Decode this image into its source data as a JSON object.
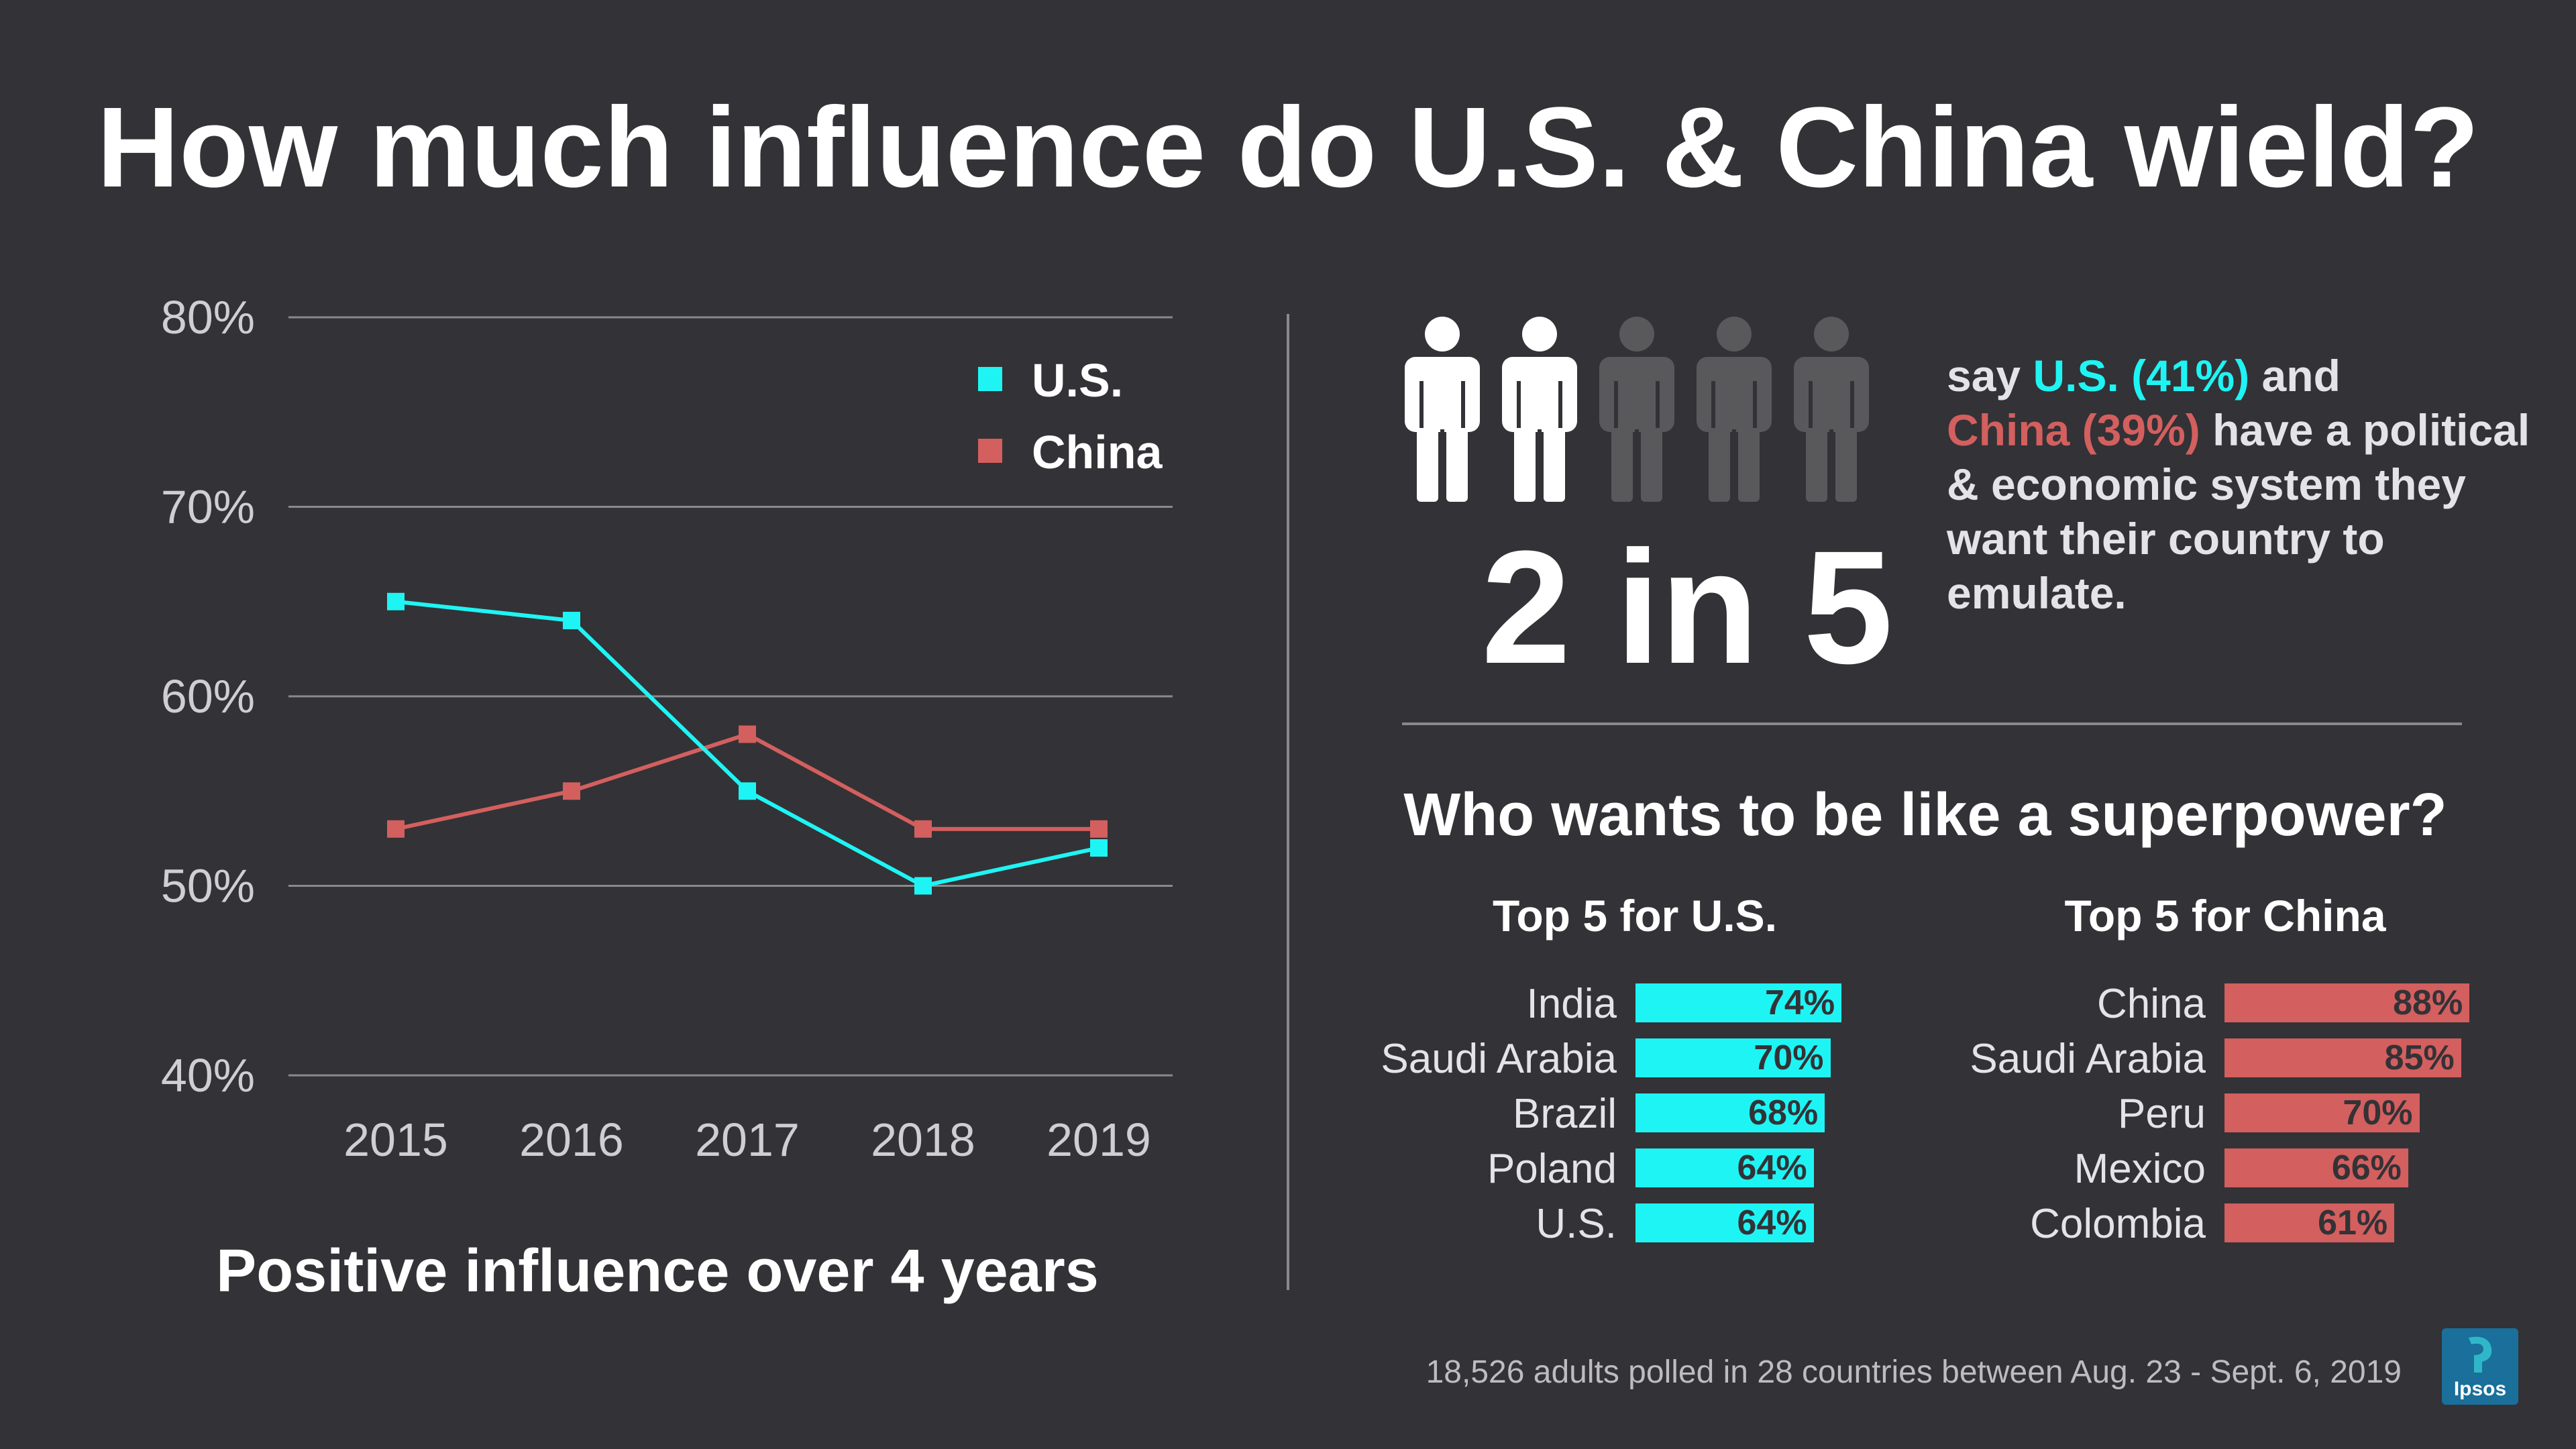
{
  "title": "How much influence do U.S. & China wield?",
  "colors": {
    "us": "#1ff4f4",
    "china": "#d35f5f",
    "background": "#333236",
    "person_active": "#ffffff",
    "person_inactive": "#59585b"
  },
  "chart_data": [
    {
      "type": "line",
      "title": "Positive influence over 4 years",
      "x": [
        "2015",
        "2016",
        "2017",
        "2018",
        "2019"
      ],
      "series": [
        {
          "name": "U.S.",
          "values": [
            65,
            64,
            55,
            50,
            52
          ],
          "color": "#1ff4f4"
        },
        {
          "name": "China",
          "values": [
            53,
            55,
            58,
            53,
            53
          ],
          "color": "#d35f5f"
        }
      ],
      "ylim": [
        40,
        80
      ],
      "yticks": [
        40,
        50,
        60,
        70,
        80
      ],
      "ytick_labels": [
        "40%",
        "50%",
        "60%",
        "70%",
        "80%"
      ],
      "grid": true,
      "legend": "top-right",
      "xlabel": "",
      "ylabel": ""
    },
    {
      "type": "bar",
      "orientation": "horizontal",
      "title": "Top 5 for U.S.",
      "categories": [
        "India",
        "Saudi Arabia",
        "Brazil",
        "Poland",
        "U.S."
      ],
      "values": [
        74,
        70,
        68,
        64,
        64
      ],
      "value_labels": [
        "74%",
        "70%",
        "68%",
        "64%",
        "64%"
      ],
      "color": "#1ff4f4"
    },
    {
      "type": "bar",
      "orientation": "horizontal",
      "title": "Top 5 for China",
      "categories": [
        "China",
        "Saudi Arabia",
        "Peru",
        "Mexico",
        "Colombia"
      ],
      "values": [
        88,
        85,
        70,
        66,
        61
      ],
      "value_labels": [
        "88%",
        "85%",
        "70%",
        "66%",
        "61%"
      ],
      "color": "#d35f5f"
    }
  ],
  "stat": {
    "headline": "2 in 5",
    "people_total": 5,
    "people_active": 2,
    "text_say": "say ",
    "us_part": "U.S. (41%)",
    "text_and": " and",
    "china_part": "China (39%)",
    "text_rest": " have a political & economic system they want their country to emulate."
  },
  "superpower": {
    "title": "Who wants to be like a superpower?"
  },
  "footnote": "18,526 adults polled in 28 countries between Aug. 23 - Sept. 6, 2019",
  "logo": {
    "text": "Ipsos"
  }
}
